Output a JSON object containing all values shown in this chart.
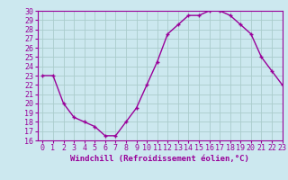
{
  "x": [
    0,
    1,
    2,
    3,
    4,
    5,
    6,
    7,
    8,
    9,
    10,
    11,
    12,
    13,
    14,
    15,
    16,
    17,
    18,
    19,
    20,
    21,
    22,
    23
  ],
  "y": [
    23,
    23,
    20,
    18.5,
    18,
    17.5,
    16.5,
    16.5,
    18,
    19.5,
    22,
    24.5,
    27.5,
    28.5,
    29.5,
    29.5,
    30,
    30,
    29.5,
    28.5,
    27.5,
    25,
    23.5,
    22
  ],
  "line_color": "#990099",
  "marker": "+",
  "marker_size": 3,
  "xlabel": "Windchill (Refroidissement éolien,°C)",
  "xlim": [
    -0.5,
    23
  ],
  "ylim": [
    16,
    30
  ],
  "yticks": [
    16,
    17,
    18,
    19,
    20,
    21,
    22,
    23,
    24,
    25,
    26,
    27,
    28,
    29,
    30
  ],
  "xticks": [
    0,
    1,
    2,
    3,
    4,
    5,
    6,
    7,
    8,
    9,
    10,
    11,
    12,
    13,
    14,
    15,
    16,
    17,
    18,
    19,
    20,
    21,
    22,
    23
  ],
  "bg_color": "#cce8ef",
  "grid_color": "#aacccc",
  "tick_color": "#990099",
  "label_color": "#990099",
  "xlabel_fontsize": 6.5,
  "tick_fontsize": 6.0,
  "linewidth": 1.0
}
